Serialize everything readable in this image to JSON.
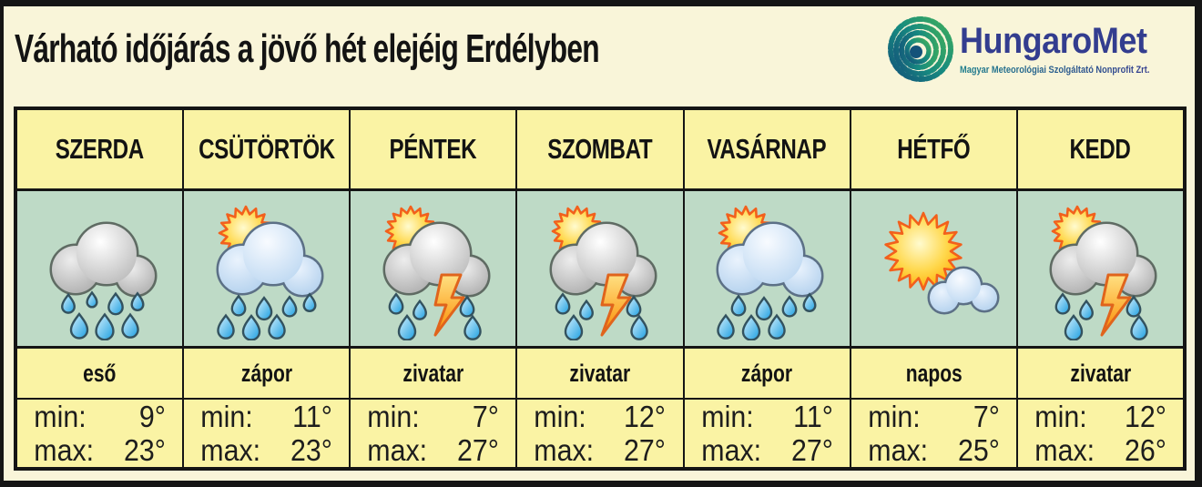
{
  "page": {
    "title": "Várható időjárás a jövő hét elejéig Erdélyben"
  },
  "colors": {
    "page_bg": "#F9F5D9",
    "frame": "#151515",
    "cell_yellow": "#FAF3A4",
    "icon_row_green": "#BEDAC6",
    "logo_navy": "#333D8F",
    "logo_teal": "#1E7E8C",
    "logo_green": "#3FAE5C",
    "sun_orange": "#F2601C",
    "drop_blue": "#1D9FE0"
  },
  "logo": {
    "name": "HungaroMet",
    "subtitle": "Magyar Meteorológiai Szolgáltató Nonprofit Zrt.",
    "icon": "spiral-logo-icon",
    "spiral_colors": [
      "#14537A",
      "#168A80",
      "#3FAE5C"
    ]
  },
  "labels": {
    "min": "min:",
    "max": "max:"
  },
  "forecast": {
    "days": [
      {
        "name": "SZERDA",
        "icon": "rain-cloud",
        "condition": "eső",
        "min": "9°",
        "max": "23°"
      },
      {
        "name": "CSÜTÖRTÖK",
        "icon": "sun-shower",
        "condition": "zápor",
        "min": "11°",
        "max": "23°"
      },
      {
        "name": "PÉNTEK",
        "icon": "thunderstorm",
        "condition": "zivatar",
        "min": "7°",
        "max": "27°"
      },
      {
        "name": "SZOMBAT",
        "icon": "thunderstorm",
        "condition": "zivatar",
        "min": "12°",
        "max": "27°"
      },
      {
        "name": "VASÁRNAP",
        "icon": "sun-shower",
        "condition": "zápor",
        "min": "11°",
        "max": "27°"
      },
      {
        "name": "HÉTFŐ",
        "icon": "sunny",
        "condition": "napos",
        "min": "7°",
        "max": "25°"
      },
      {
        "name": "KEDD",
        "icon": "thunderstorm",
        "condition": "zivatar",
        "min": "12°",
        "max": "26°"
      }
    ]
  },
  "chart_data": {
    "type": "table",
    "title": "Várható időjárás a jövő hét elejéig Erdélyben",
    "columns": [
      "SZERDA",
      "CSÜTÖRTÖK",
      "PÉNTEK",
      "SZOMBAT",
      "VASÁRNAP",
      "HÉTFŐ",
      "KEDD"
    ],
    "rows": [
      {
        "label": "condition",
        "values": [
          "eső",
          "zápor",
          "zivatar",
          "zivatar",
          "zápor",
          "napos",
          "zivatar"
        ]
      },
      {
        "label": "min_temp_c",
        "values": [
          9,
          11,
          7,
          12,
          11,
          7,
          12
        ]
      },
      {
        "label": "max_temp_c",
        "values": [
          23,
          23,
          27,
          27,
          27,
          25,
          26
        ]
      }
    ]
  }
}
